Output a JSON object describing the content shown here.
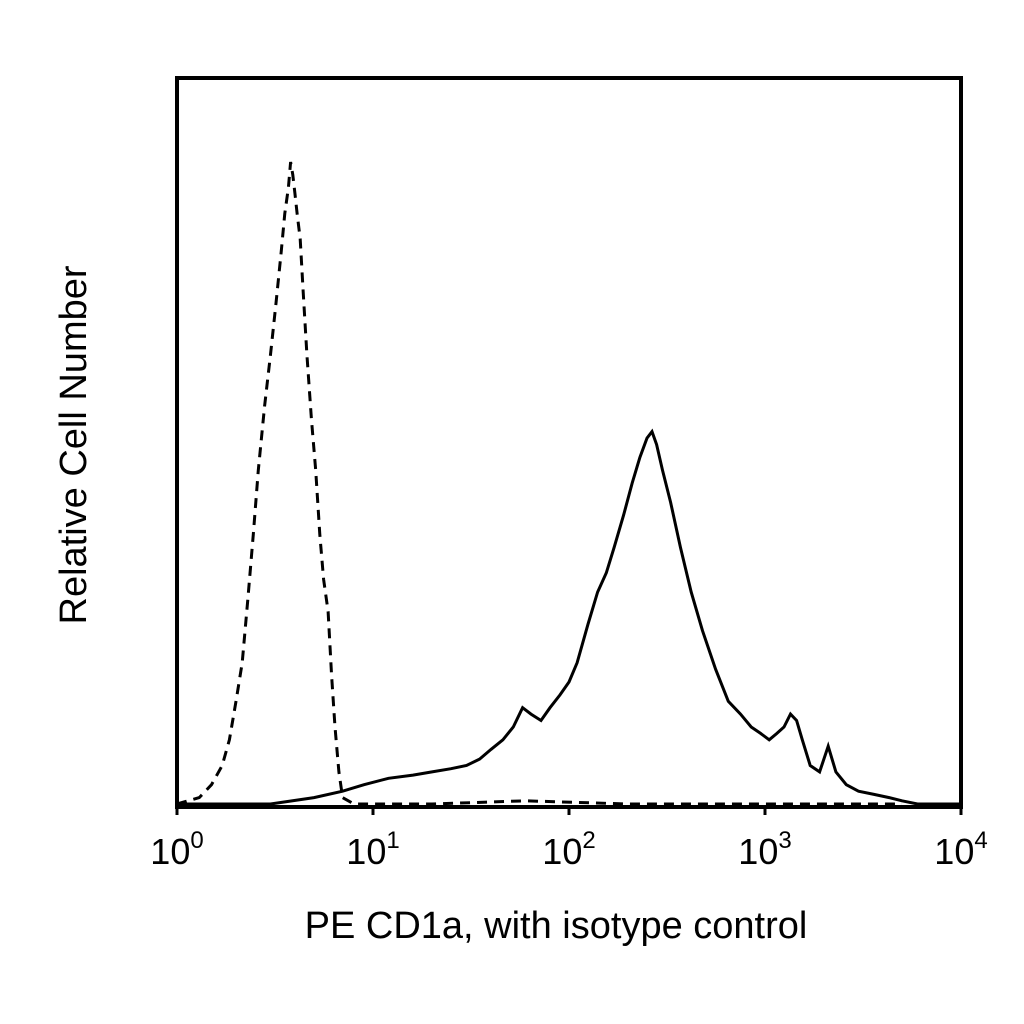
{
  "chart_data": {
    "type": "line",
    "title": "",
    "xlabel": "PE CD1a, with isotype control",
    "ylabel": "Relative Cell Number",
    "x_scale": "log",
    "xlim": [
      1,
      10000
    ],
    "ylim": [
      0,
      1
    ],
    "grid": false,
    "legend": "none",
    "x_ticks": [
      {
        "base": "10",
        "exp": "0",
        "value": 1
      },
      {
        "base": "10",
        "exp": "1",
        "value": 10
      },
      {
        "base": "10",
        "exp": "2",
        "value": 100
      },
      {
        "base": "10",
        "exp": "3",
        "value": 1000
      },
      {
        "base": "10",
        "exp": "4",
        "value": 10000
      }
    ],
    "series": [
      {
        "line_style": "dashed",
        "color": "#000000",
        "points": [
          [
            1.0,
            0.0
          ],
          [
            1.3,
            0.01
          ],
          [
            1.5,
            0.03
          ],
          [
            1.7,
            0.06
          ],
          [
            1.85,
            0.1
          ],
          [
            2.0,
            0.16
          ],
          [
            2.15,
            0.22
          ],
          [
            2.3,
            0.32
          ],
          [
            2.45,
            0.42
          ],
          [
            2.6,
            0.52
          ],
          [
            2.8,
            0.62
          ],
          [
            3.0,
            0.7
          ],
          [
            3.2,
            0.78
          ],
          [
            3.4,
            0.86
          ],
          [
            3.55,
            0.92
          ],
          [
            3.7,
            0.96
          ],
          [
            3.8,
            1.0
          ],
          [
            3.9,
            0.98
          ],
          [
            4.0,
            0.95
          ],
          [
            4.1,
            0.92
          ],
          [
            4.25,
            0.88
          ],
          [
            4.4,
            0.8
          ],
          [
            4.6,
            0.7
          ],
          [
            4.85,
            0.6
          ],
          [
            5.1,
            0.52
          ],
          [
            5.35,
            0.42
          ],
          [
            5.6,
            0.35
          ],
          [
            5.9,
            0.3
          ],
          [
            6.15,
            0.2
          ],
          [
            6.4,
            0.12
          ],
          [
            6.7,
            0.05
          ],
          [
            7.0,
            0.01
          ],
          [
            8.0,
            0.0
          ],
          [
            20.0,
            0.0
          ],
          [
            60.0,
            0.005
          ],
          [
            200.0,
            0.0
          ],
          [
            1000.0,
            0.0
          ],
          [
            5000.0,
            0.0
          ]
        ]
      },
      {
        "line_style": "solid",
        "color": "#000000",
        "points": [
          [
            1.0,
            0.0
          ],
          [
            3.0,
            0.0
          ],
          [
            5.0,
            0.01
          ],
          [
            7.0,
            0.02
          ],
          [
            9.0,
            0.03
          ],
          [
            12.0,
            0.04
          ],
          [
            16.0,
            0.045
          ],
          [
            20.0,
            0.05
          ],
          [
            25.0,
            0.055
          ],
          [
            30.0,
            0.06
          ],
          [
            35.0,
            0.07
          ],
          [
            40.0,
            0.085
          ],
          [
            46.0,
            0.1
          ],
          [
            52.0,
            0.12
          ],
          [
            58.0,
            0.15
          ],
          [
            64.0,
            0.14
          ],
          [
            72.0,
            0.13
          ],
          [
            80.0,
            0.15
          ],
          [
            90.0,
            0.17
          ],
          [
            100.0,
            0.19
          ],
          [
            110.0,
            0.22
          ],
          [
            125.0,
            0.28
          ],
          [
            140.0,
            0.33
          ],
          [
            155.0,
            0.36
          ],
          [
            170.0,
            0.4
          ],
          [
            190.0,
            0.45
          ],
          [
            210.0,
            0.5
          ],
          [
            230.0,
            0.54
          ],
          [
            250.0,
            0.57
          ],
          [
            265.0,
            0.58
          ],
          [
            280.0,
            0.56
          ],
          [
            300.0,
            0.52
          ],
          [
            330.0,
            0.47
          ],
          [
            370.0,
            0.4
          ],
          [
            420.0,
            0.33
          ],
          [
            480.0,
            0.27
          ],
          [
            560.0,
            0.21
          ],
          [
            650.0,
            0.16
          ],
          [
            750.0,
            0.14
          ],
          [
            850.0,
            0.12
          ],
          [
            950.0,
            0.11
          ],
          [
            1050.0,
            0.1
          ],
          [
            1150.0,
            0.11
          ],
          [
            1250.0,
            0.12
          ],
          [
            1350.0,
            0.14
          ],
          [
            1450.0,
            0.13
          ],
          [
            1550.0,
            0.1
          ],
          [
            1700.0,
            0.06
          ],
          [
            1900.0,
            0.05
          ],
          [
            2100.0,
            0.09
          ],
          [
            2300.0,
            0.05
          ],
          [
            2600.0,
            0.03
          ],
          [
            3000.0,
            0.02
          ],
          [
            3600.0,
            0.015
          ],
          [
            4300.0,
            0.01
          ],
          [
            5000.0,
            0.005
          ],
          [
            6000.0,
            0.0
          ],
          [
            10000.0,
            0.0
          ]
        ]
      }
    ]
  }
}
